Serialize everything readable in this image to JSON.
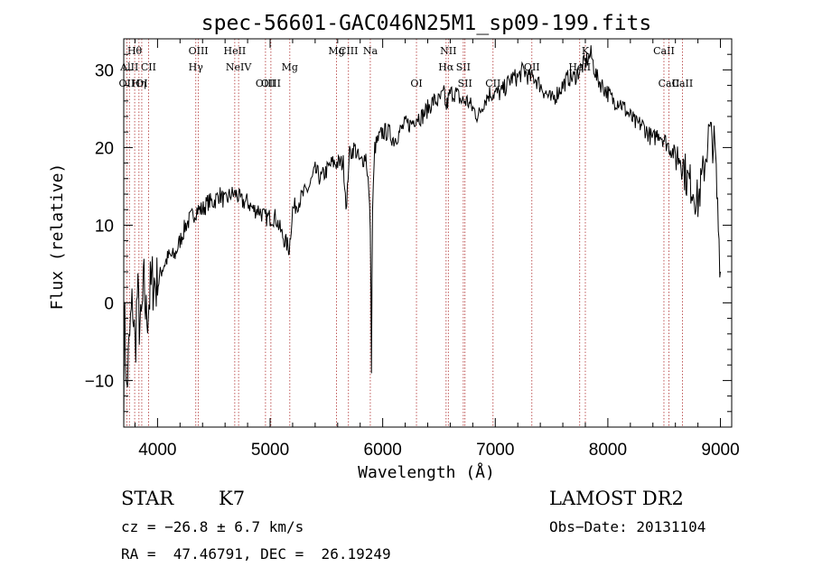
{
  "chart_data": {
    "type": "line",
    "title": "spec-56601-GAC046N25M1_sp09-199.fits",
    "xlabel": "Wavelength (Å)",
    "ylabel": "Flux (relative)",
    "xlim": [
      3700,
      9100
    ],
    "ylim": [
      -16,
      34
    ],
    "x_ticks": [
      4000,
      5000,
      6000,
      7000,
      8000,
      9000
    ],
    "y_ticks": [
      -10,
      0,
      10,
      20,
      30
    ],
    "grid": false,
    "line_color": "#000000",
    "marker_color": "#b03030",
    "series": [
      {
        "x": [
          3700,
          3710,
          3720,
          3740,
          3760,
          3780,
          3800,
          3820,
          3850,
          3880,
          3900,
          3930,
          3960,
          4000,
          4030,
          4060,
          4100,
          4150,
          4200,
          4250,
          4300,
          4350,
          4400,
          4450,
          4500,
          4550,
          4600,
          4650,
          4700,
          4750,
          4800,
          4850,
          4900,
          4950,
          5000,
          5050,
          5100,
          5130,
          5170,
          5200,
          5250,
          5300,
          5350,
          5400,
          5450,
          5500,
          5550,
          5600,
          5650,
          5680,
          5700,
          5750,
          5800,
          5850,
          5870,
          5890,
          5900,
          5910,
          5930,
          5960,
          6000,
          6050,
          6100,
          6150,
          6200,
          6250,
          6300,
          6350,
          6400,
          6450,
          6500,
          6550,
          6560,
          6600,
          6650,
          6700,
          6750,
          6800,
          6850,
          6900,
          6950,
          7000,
          7050,
          7100,
          7150,
          7200,
          7250,
          7300,
          7350,
          7400,
          7450,
          7500,
          7550,
          7600,
          7650,
          7700,
          7750,
          7800,
          7850,
          7900,
          7950,
          8000,
          8050,
          8100,
          8150,
          8200,
          8250,
          8300,
          8350,
          8400,
          8450,
          8500,
          8550,
          8600,
          8650,
          8700,
          8750,
          8800,
          8850,
          8900,
          8950,
          9000
        ],
        "y": [
          -14,
          2,
          -12,
          -8,
          -3,
          0,
          -6,
          1,
          -4,
          2,
          -2,
          1,
          3,
          2,
          4,
          5,
          6,
          6,
          8,
          10,
          11,
          12,
          12,
          13,
          13,
          14,
          13,
          14,
          14,
          13,
          13,
          12,
          12,
          11,
          11,
          11,
          9,
          8,
          7,
          12,
          13,
          14,
          15,
          17,
          16,
          17,
          18,
          18,
          18,
          12,
          19,
          20,
          18,
          19,
          16,
          10,
          -8,
          12,
          20,
          21,
          22,
          22,
          21,
          22,
          23,
          23,
          24,
          24,
          25,
          26,
          26,
          27,
          25,
          27,
          27,
          26,
          26,
          25,
          24,
          26,
          27,
          27,
          27,
          28,
          29,
          29,
          30,
          29,
          29,
          28,
          27,
          26,
          27,
          28,
          29,
          29,
          30,
          31,
          32,
          29,
          28,
          27,
          26,
          26,
          25,
          24,
          23,
          23,
          22,
          21,
          22,
          21,
          20,
          19,
          19,
          16,
          15,
          13,
          17,
          22,
          20,
          4
        ]
      }
    ],
    "markers": [
      {
        "label": "Hθ",
        "x": 3797,
        "row": 1
      },
      {
        "label": "AlII",
        "x": 3750,
        "row": 2
      },
      {
        "label": "OII",
        "x": 3727,
        "row": 3
      },
      {
        "label": "Hη",
        "x": 3835,
        "row": 3
      },
      {
        "label": "CII",
        "x": 3920,
        "row": 2
      },
      {
        "label": "OI",
        "x": 3860,
        "row": 3
      },
      {
        "label": "OIII",
        "x": 4363,
        "row": 1
      },
      {
        "label": "Hγ",
        "x": 4340,
        "row": 2
      },
      {
        "label": "HeII",
        "x": 4686,
        "row": 1
      },
      {
        "label": "NeIV",
        "x": 4720,
        "row": 2
      },
      {
        "label": "OIII",
        "x": 4959,
        "row": 3
      },
      {
        "label": "OIII",
        "x": 5007,
        "row": 3
      },
      {
        "label": "Mg",
        "x": 5175,
        "row": 2
      },
      {
        "label": "Mg",
        "x": 5590,
        "row": 1
      },
      {
        "label": "CIII",
        "x": 5696,
        "row": 1
      },
      {
        "label": "Na",
        "x": 5890,
        "row": 1
      },
      {
        "label": "OI",
        "x": 6300,
        "row": 3
      },
      {
        "label": "NII",
        "x": 6583,
        "row": 1
      },
      {
        "label": "Hα",
        "x": 6563,
        "row": 2
      },
      {
        "label": "SII",
        "x": 6716,
        "row": 2
      },
      {
        "label": "SII",
        "x": 6731,
        "row": 3
      },
      {
        "label": "CII",
        "x": 6980,
        "row": 3
      },
      {
        "label": "OII",
        "x": 7325,
        "row": 2
      },
      {
        "label": "HeII",
        "x": 7750,
        "row": 2
      },
      {
        "label": "K",
        "x": 7800,
        "row": 1
      },
      {
        "label": "CaII",
        "x": 8498,
        "row": 1
      },
      {
        "label": "CaII",
        "x": 8542,
        "row": 3
      },
      {
        "label": "CaII",
        "x": 8662,
        "row": 3
      }
    ]
  },
  "info": {
    "object_class": "STAR",
    "subclass": "K7",
    "survey": "LAMOST DR2",
    "cz": "cz = −26.8 ± 6.7 km/s",
    "obs_date": "Obs−Date: 20131104",
    "coords": "RA =  47.46791, DEC =  26.19249"
  }
}
